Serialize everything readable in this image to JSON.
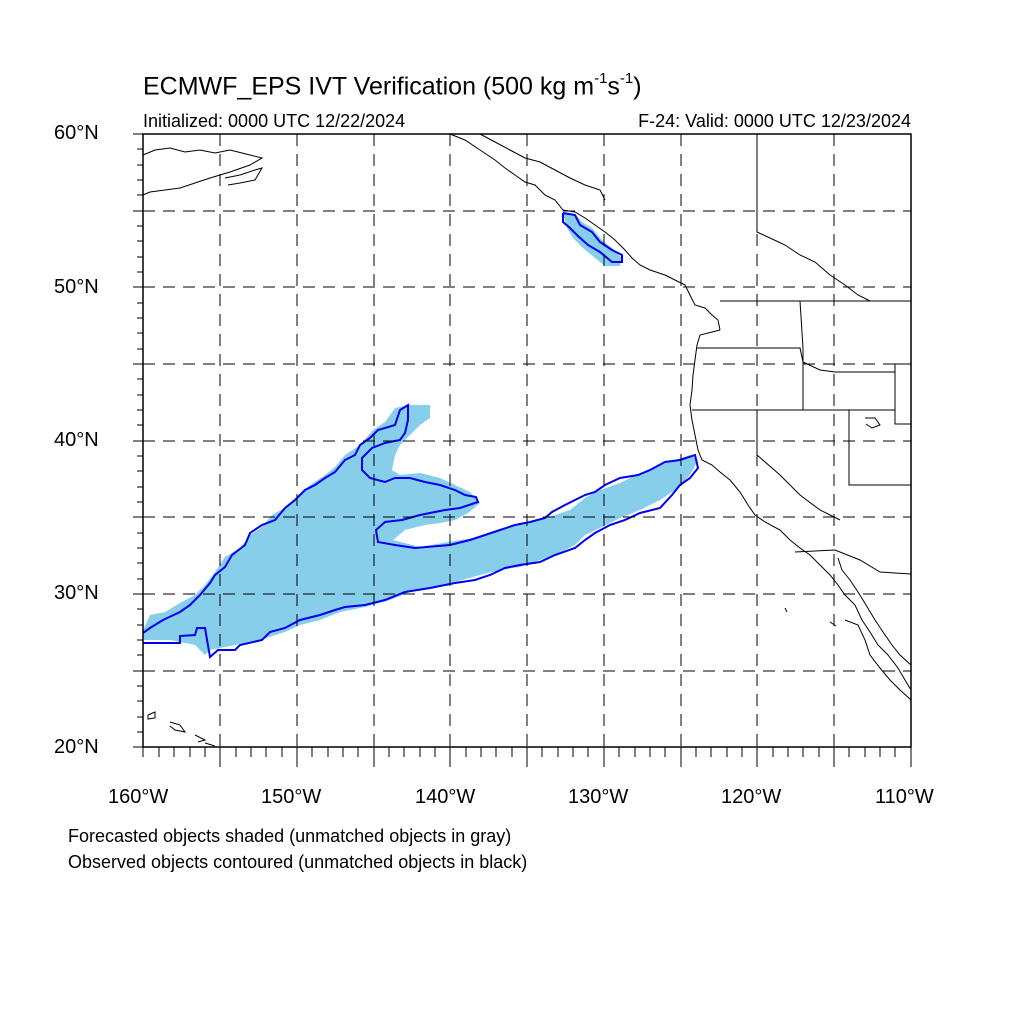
{
  "title": {
    "main": "ECMWF_EPS IVT Verification (500 kg m",
    "exp1": "-1",
    "mid": "s",
    "exp2": "-1",
    "end": ")"
  },
  "initialized": "Initialized: 0000 UTC 12/22/2024",
  "valid": "F-24: Valid: 0000 UTC 12/23/2024",
  "lat_labels": [
    "60°N",
    "50°N",
    "40°N",
    "30°N",
    "20°N"
  ],
  "lon_labels": [
    "160°W",
    "150°W",
    "140°W",
    "130°W",
    "120°W",
    "110°W"
  ],
  "notes": {
    "line1": "Forecasted objects shaded (unmatched objects in gray)",
    "line2": "Observed objects contoured (unmatched objects in black)"
  },
  "colors": {
    "forecast_fill": "#87ceeb",
    "observed_contour": "#0000ee",
    "coastline": "#000000",
    "grid": "#000000"
  }
}
